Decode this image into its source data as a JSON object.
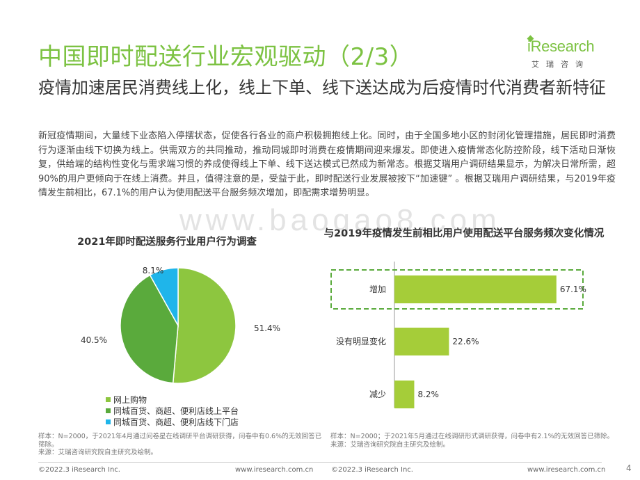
{
  "header": {
    "title": "中国即时配送行业宏观驱动（2/3）",
    "subtitle": "疫情加速居民消费线上化，线上下单、线下送达成为后疫情时代消费者新特征",
    "logo_text": "iResearch",
    "logo_sub": "艾瑞咨询",
    "brand_color": "#7cc242"
  },
  "body_text": "新冠疫情期间，大量线下业态陷入停摆状态，促使各行各业的商户积极拥抱线上化。同时，由于全国多地小区的封闭化管理措施，居民即时消费行为逐渐由线下切换为线上。供需双方的共同推动，推动同城即时消费在疫情期间迎来爆发。即使进入疫情常态化防控阶段，线下活动日渐恢复，供给端的结构性变化与需求端习惯的养成使得线上下单、线下送达模式已然成为新常态。根据艾瑞用户调研结果显示，为解决日常所需，超90%的用户更倾向于在线上消费。并且，值得注意的是，受益于此，即时配送行业发展被按下“加速键” 。根据艾瑞用户调研结果，与2019年疫情发生前相比，67.1%的用户认为使用配送平台服务频次增加，即配需求增势明显。",
  "watermark": "www.baogao8.com",
  "chart_data": [
    {
      "type": "pie",
      "title": "2021年即时配送服务行业用户行为调查",
      "slices": [
        {
          "label": "网上购物",
          "value": 51.4,
          "value_label": "51.4%",
          "color": "#8dc63f"
        },
        {
          "label": "同城百货、商超、便利店线上平台",
          "value": 40.5,
          "value_label": "40.5%",
          "color": "#5aaa3c"
        },
        {
          "label": "同城百货、商超、便利店线下门店",
          "value": 8.1,
          "value_label": "8.1%",
          "color": "#1fb5ea"
        }
      ],
      "legend_position": "bottom-left"
    },
    {
      "type": "bar",
      "orientation": "horizontal",
      "title": "与2019年疫情发生前相比用户使用配送平台服务频次变化情况",
      "categories": [
        "增加",
        "没有明显变化",
        "减少"
      ],
      "values": [
        67.1,
        22.6,
        8.2
      ],
      "value_labels": [
        "67.1%",
        "22.6%",
        "8.2%"
      ],
      "bar_color": "#a5cd39",
      "highlight_category": "增加",
      "highlight_color": "#5aaa3c",
      "xlim": [
        0,
        100
      ]
    }
  ],
  "notes": {
    "left": "样本：N=2000，于2021年4月通过问卷星在线调研平台调研获得，问卷中有0.6%的无效回答已筛除。\n来源：艾瑞咨询研究院自主研究及绘制。",
    "right": "样本：N=2000；于2021年5月通过在线调研形式调研获得，问卷中有2.1%的无效回答已筛除。\n来源：艾瑞咨询研究院自主研究及绘制。"
  },
  "footer": {
    "copyright": "©2022.3 iResearch Inc.",
    "url": "www.iresearch.com.cn",
    "page": "4"
  }
}
